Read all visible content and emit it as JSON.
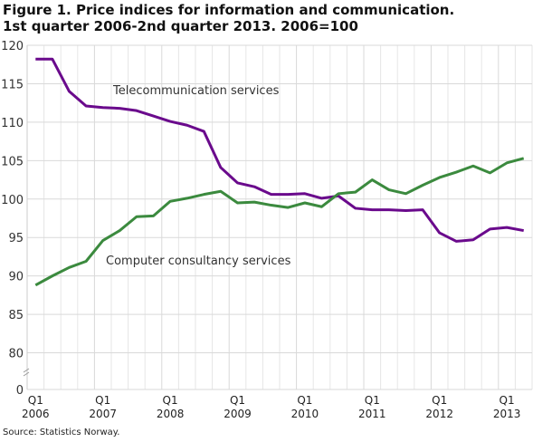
{
  "chart_data": {
    "type": "line",
    "title_line1": "Figure 1. Price indices for information and communication.",
    "title_line2": "1st quarter 2006-2nd quarter 2013. 2006=100",
    "source": "Source: Statistics Norway.",
    "x": [
      "2006Q1",
      "2006Q2",
      "2006Q3",
      "2006Q4",
      "2007Q1",
      "2007Q2",
      "2007Q3",
      "2007Q4",
      "2008Q1",
      "2008Q2",
      "2008Q3",
      "2008Q4",
      "2009Q1",
      "2009Q2",
      "2009Q3",
      "2009Q4",
      "2010Q1",
      "2010Q2",
      "2010Q3",
      "2010Q4",
      "2011Q1",
      "2011Q2",
      "2011Q3",
      "2011Q4",
      "2012Q1",
      "2012Q2",
      "2012Q3",
      "2012Q4",
      "2013Q1",
      "2013Q2"
    ],
    "x_ticks": [
      {
        "q": "Q1",
        "y": "2006"
      },
      {
        "q": "Q1",
        "y": "2007"
      },
      {
        "q": "Q1",
        "y": "2008"
      },
      {
        "q": "Q1",
        "y": "2009"
      },
      {
        "q": "Q1",
        "y": "2010"
      },
      {
        "q": "Q1",
        "y": "2011"
      },
      {
        "q": "Q1",
        "y": "2012"
      },
      {
        "q": "Q1",
        "y": "2013"
      }
    ],
    "y_ticks": [
      "0",
      "80",
      "85",
      "90",
      "95",
      "100",
      "105",
      "110",
      "115",
      "120"
    ],
    "ylim": [
      80,
      120
    ],
    "y_axis_break": true,
    "grid": true,
    "series": [
      {
        "name": "Telecommunication services",
        "color": "#6a0a8c",
        "values": [
          118.2,
          118.2,
          114.0,
          112.1,
          111.9,
          111.8,
          111.5,
          110.8,
          110.1,
          109.6,
          108.8,
          104.1,
          102.1,
          101.6,
          100.6,
          100.6,
          100.7,
          100.1,
          100.4,
          98.8,
          98.6,
          98.6,
          98.5,
          98.6,
          95.6,
          94.5,
          94.7,
          96.1,
          96.3,
          95.9
        ]
      },
      {
        "name": "Computer consultancy services",
        "color": "#3b8a3e",
        "values": [
          88.8,
          90.0,
          91.1,
          91.9,
          94.6,
          95.9,
          97.7,
          97.8,
          99.7,
          100.1,
          100.6,
          101.0,
          99.5,
          99.6,
          99.2,
          98.9,
          99.5,
          99.0,
          100.7,
          100.9,
          102.5,
          101.2,
          100.7,
          101.8,
          102.8,
          103.5,
          104.3,
          103.4,
          104.7,
          105.3
        ]
      }
    ]
  }
}
